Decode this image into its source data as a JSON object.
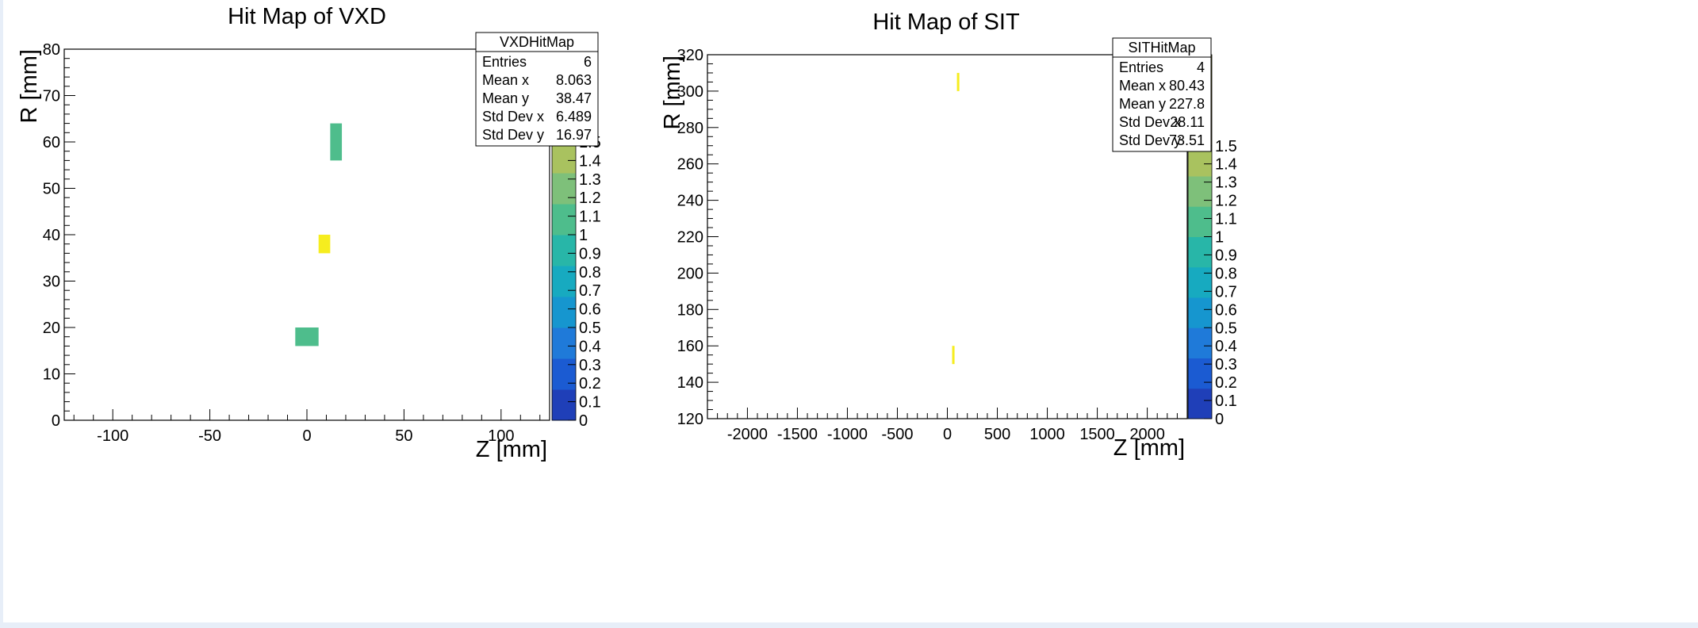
{
  "chart_data": [
    {
      "type": "heatmap",
      "title": "Hit Map of VXD",
      "xlabel": "Z [mm]",
      "ylabel": "R [mm]",
      "xlim": [
        -125,
        125
      ],
      "ylim": [
        0,
        80
      ],
      "xticks": [
        -100,
        -50,
        0,
        50,
        100
      ],
      "xtick_labels": [
        "-100",
        "-50",
        "0",
        "50",
        "100"
      ],
      "yticks": [
        0,
        10,
        20,
        30,
        40,
        50,
        60,
        70,
        80
      ],
      "ytick_labels": [
        "0",
        "10",
        "20",
        "30",
        "40",
        "50",
        "60",
        "70",
        "80"
      ],
      "cells": [
        {
          "x0": -6,
          "x1": 6,
          "y0": 16,
          "y1": 20,
          "value": 1
        },
        {
          "x0": 6,
          "x1": 12,
          "y0": 36,
          "y1": 40,
          "value": 2
        },
        {
          "x0": 12,
          "x1": 18,
          "y0": 56,
          "y1": 64,
          "value": 1
        }
      ],
      "stats": {
        "name": "VXDHitMap",
        "rows": [
          {
            "label": "Entries",
            "value": "6"
          },
          {
            "label": "Mean x",
            "value": "8.063"
          },
          {
            "label": "Mean y",
            "value": "38.47"
          },
          {
            "label": "Std Dev x",
            "value": "6.489"
          },
          {
            "label": "Std Dev y",
            "value": "16.97"
          }
        ]
      },
      "colorbar": {
        "range": [
          0,
          2
        ],
        "labels": [
          "0",
          "0.1",
          "0.2",
          "0.3",
          "0.4",
          "0.5",
          "0.6",
          "0.7",
          "0.8",
          "0.9",
          "1",
          "1.1",
          "1.2",
          "1.3",
          "1.4",
          "1.5"
        ],
        "label_values": [
          0,
          0.1,
          0.2,
          0.3,
          0.4,
          0.5,
          0.6,
          0.7,
          0.8,
          0.9,
          1.0,
          1.1,
          1.2,
          1.3,
          1.4,
          1.5
        ]
      },
      "grid": false,
      "stats_box_position": "top-right"
    },
    {
      "type": "heatmap",
      "title": "Hit Map of SIT",
      "xlabel": "Z [mm]",
      "ylabel": "R [mm]",
      "xlim": [
        -2400,
        2400
      ],
      "ylim": [
        120,
        320
      ],
      "xticks": [
        -2000,
        -1500,
        -1000,
        -500,
        0,
        500,
        1000,
        1500,
        2000
      ],
      "xtick_labels": [
        "-2000",
        "-1500",
        "-1000",
        "-500",
        "0",
        "500",
        "1000",
        "1500",
        "2000"
      ],
      "yticks": [
        120,
        140,
        160,
        180,
        200,
        220,
        240,
        260,
        280,
        300,
        320
      ],
      "ytick_labels": [
        "120",
        "140",
        "160",
        "180",
        "200",
        "220",
        "240",
        "260",
        "280",
        "300",
        "320"
      ],
      "cells": [
        {
          "x0": 48,
          "x1": 72,
          "y0": 150,
          "y1": 160,
          "value": 2
        },
        {
          "x0": 96,
          "x1": 120,
          "y0": 300,
          "y1": 310,
          "value": 2
        }
      ],
      "stats": {
        "name": "SITHitMap",
        "rows": [
          {
            "label": "Entries",
            "value": "4"
          },
          {
            "label": "Mean x",
            "value": "80.43"
          },
          {
            "label": "Mean y",
            "value": "227.8"
          },
          {
            "label": "Std Dev x",
            "value": "28.11"
          },
          {
            "label": "Std Dev y",
            "value": "73.51"
          }
        ]
      },
      "colorbar": {
        "range": [
          0,
          2
        ],
        "labels": [
          "0",
          "0.1",
          "0.2",
          "0.3",
          "0.4",
          "0.5",
          "0.6",
          "0.7",
          "0.8",
          "0.9",
          "1",
          "1.1",
          "1.2",
          "1.3",
          "1.4",
          "1.5"
        ],
        "label_values": [
          0,
          0.1,
          0.2,
          0.3,
          0.4,
          0.5,
          0.6,
          0.7,
          0.8,
          0.9,
          1.0,
          1.1,
          1.2,
          1.3,
          1.4,
          1.5
        ]
      },
      "grid": false,
      "stats_box_position": "top-right"
    }
  ],
  "palette": [
    "#1f3fb8",
    "#1b5bd2",
    "#1f7ad9",
    "#1696cf",
    "#17aac0",
    "#28b6a8",
    "#4ebd8c",
    "#7ec07a",
    "#a9c25f",
    "#d5b44d",
    "#f2d23c",
    "#f6ed1f"
  ]
}
